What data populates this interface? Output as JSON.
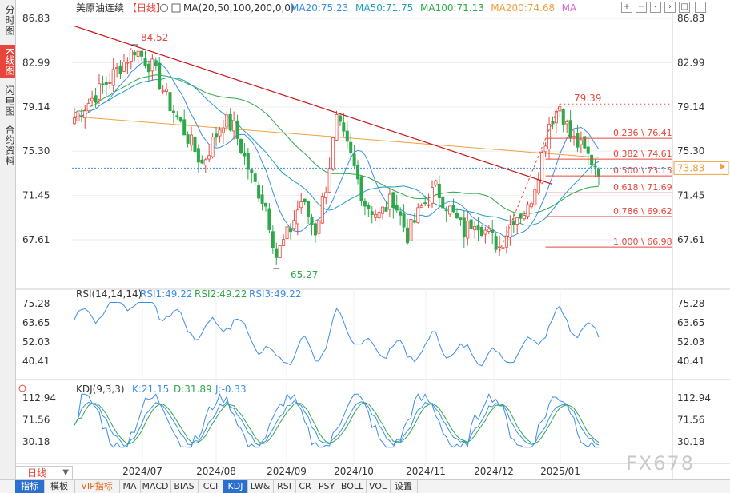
{
  "sidebar": {
    "items": [
      {
        "label": "分时图",
        "active": false
      },
      {
        "label": "K线图",
        "active": true
      },
      {
        "label": "闪电图",
        "active": false
      },
      {
        "label": "合约资料",
        "active": false
      }
    ]
  },
  "price_panel": {
    "symbol": "美原油连续",
    "period_tag": "【日线】",
    "ma_params": "MA(20,50,100,200,0,0)",
    "ma_values": [
      {
        "label": "MA20:75.23",
        "color": "#3b8ee8"
      },
      {
        "label": "MA50:71.75",
        "color": "#1f9fc0"
      },
      {
        "label": "MA100:71.13",
        "color": "#2ea84a"
      },
      {
        "label": "MA200:74.68",
        "color": "#f0a040"
      },
      {
        "label": "MA",
        "color": "#d966d9"
      }
    ],
    "y_ticks": [
      "86.83",
      "82.99",
      "79.14",
      "75.30",
      "71.45",
      "67.61"
    ],
    "current_price": "73.83",
    "high_label": "84.52",
    "low_label": "65.27",
    "recent_high_label": "79.39",
    "fib_levels": [
      {
        "label": "0.236 \\ 76.41",
        "value": 76.41
      },
      {
        "label": "0.382 \\ 74.61",
        "value": 74.61
      },
      {
        "label": "0.500 \\ 73.15",
        "value": 73.15
      },
      {
        "label": "0.618 \\ 71.69",
        "value": 71.69
      },
      {
        "label": "0.786 \\ 69.62",
        "value": 69.62
      },
      {
        "label": "1.000 \\ 66.98",
        "value": 66.98
      }
    ]
  },
  "rsi_panel": {
    "title": "RSI(14,14,14)",
    "values": [
      {
        "label": "RSI1:49.22",
        "color": "#3b8ee8"
      },
      {
        "label": "RSI2:49.22",
        "color": "#2ea84a"
      },
      {
        "label": "RSI3:49.22",
        "color": "#3b8ee8"
      }
    ],
    "y_ticks": [
      "75.28",
      "63.65",
      "52.03",
      "40.41"
    ]
  },
  "kdj_panel": {
    "title": "KDJ(9,3,3)",
    "values": [
      {
        "label": "K:21.15",
        "color": "#3b8ee8"
      },
      {
        "label": "D:31.89",
        "color": "#2ea84a"
      },
      {
        "label": "J:-0.33",
        "color": "#3b8ee8"
      }
    ],
    "y_ticks": [
      "112.94",
      "71.56",
      "30.18"
    ]
  },
  "x_axis": {
    "labels": [
      "2024/07",
      "2024/08",
      "2024/09",
      "2024/10",
      "2024/11",
      "2024/12",
      "2025/01"
    ]
  },
  "range_button": "日线",
  "bottom_tabs": [
    {
      "label": "指标",
      "active": true
    },
    {
      "label": "模板",
      "active": false
    },
    {
      "label": "VIP指标",
      "active": false,
      "vip": true
    },
    {
      "label": "MA",
      "active": false
    },
    {
      "label": "MACD",
      "active": false
    },
    {
      "label": "BIAS",
      "active": false
    },
    {
      "label": "CCI",
      "active": false
    },
    {
      "label": "KDJ",
      "active": true
    },
    {
      "label": "LW&",
      "active": false
    },
    {
      "label": "RSI",
      "active": false
    },
    {
      "label": "CR",
      "active": false
    },
    {
      "label": "PSY",
      "active": false
    },
    {
      "label": "BOLL",
      "active": false
    },
    {
      "label": "VOL",
      "active": false
    },
    {
      "label": "设置",
      "active": false
    }
  ],
  "watermark": "FX678",
  "colors": {
    "up": "#e8463c",
    "down": "#2ea84a",
    "trendline": "#cc1111",
    "fib": "#e8463c"
  },
  "chart_data": {
    "type": "candlestick",
    "price_range": [
      64.0,
      88.0
    ],
    "trendline_points": [
      [
        0,
        84.5
      ],
      [
        128,
        73.0
      ]
    ],
    "swing_high_index": 17,
    "swing_low_index": 57,
    "recent_high_index": 137,
    "fib_anchor_low_index": 120,
    "fib_anchor_high_index": 137
  }
}
